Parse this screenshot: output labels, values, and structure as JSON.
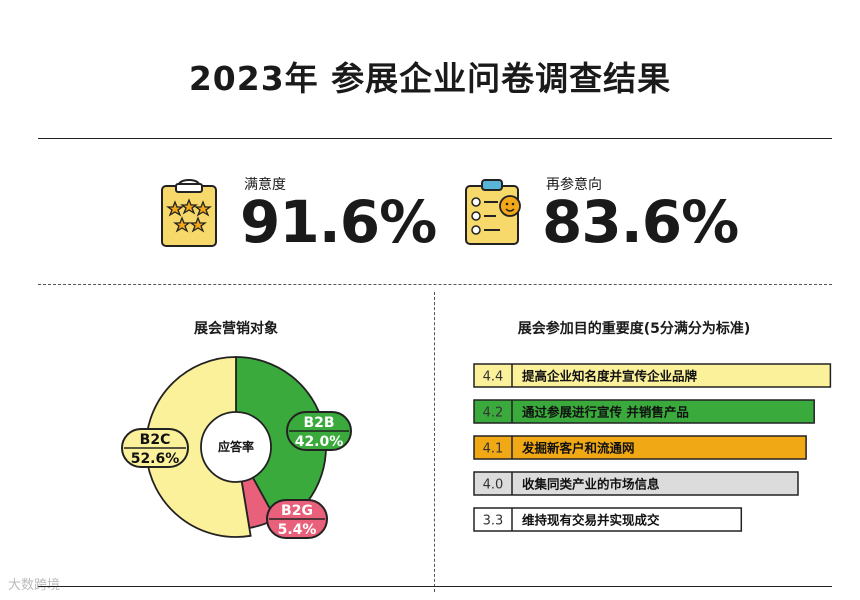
{
  "title": "2023年 参展企业问卷调查结果",
  "kpis": [
    {
      "label": "满意度",
      "value": "91.6%",
      "icon": "clipboard-stars-icon"
    },
    {
      "label": "再参意向",
      "value": "83.6%",
      "icon": "checklist-smile-icon"
    }
  ],
  "watermark": "大数跨境",
  "colors": {
    "yellow": "#fbf19b",
    "green": "#3aaa3c",
    "pink": "#e8607a",
    "orange": "#f0a815",
    "gray": "#dcdcdc",
    "white": "#ffffff"
  },
  "chart_data": [
    {
      "type": "pie",
      "title": "展会营销对象",
      "center_label": "应答率",
      "categories": [
        "B2B",
        "B2G",
        "B2C"
      ],
      "values": [
        42.0,
        5.4,
        52.6
      ],
      "value_labels": [
        "42.0%",
        "5.4%",
        "52.6%"
      ],
      "colors": [
        "#3aaa3c",
        "#e8607a",
        "#fbf19b"
      ]
    },
    {
      "type": "bar",
      "title": "展会参加目的重要度(5分满分为标准)",
      "categories": [
        "提高企业知名度并宣传企业品牌",
        "通过参展进行宣传 并销售产品",
        "发掘新客户和流通网",
        "收集同类产业的市场信息",
        "维持现有交易并实现成交"
      ],
      "values": [
        4.4,
        4.2,
        4.1,
        4.0,
        3.3
      ],
      "value_labels": [
        "4.4",
        "4.2",
        "4.1",
        "4.0",
        "3.3"
      ],
      "colors": [
        "#fbf19b",
        "#3aaa3c",
        "#f0a815",
        "#dcdcdc",
        "#ffffff"
      ],
      "xlim": [
        0,
        5
      ]
    }
  ]
}
